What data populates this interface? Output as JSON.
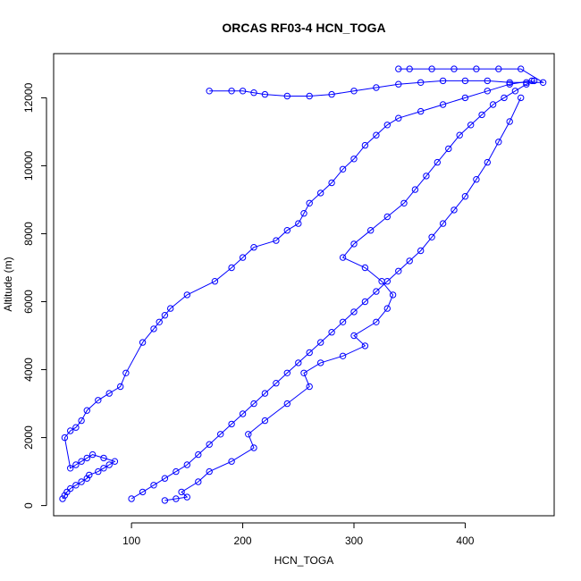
{
  "chart_data": {
    "type": "line",
    "title": "ORCAS RF03-4 HCN_TOGA",
    "xlabel": "HCN_TOGA",
    "ylabel": "Altitude (m)",
    "xlim": [
      30,
      480
    ],
    "ylim": [
      -300,
      13300
    ],
    "x_ticks": [
      100,
      200,
      300,
      400
    ],
    "y_ticks": [
      0,
      2000,
      4000,
      6000,
      8000,
      10000,
      12000
    ],
    "grid": false,
    "marker": "open-circle",
    "series_color": "#0000ff",
    "series": [
      {
        "x": [
          38,
          40,
          42,
          45,
          50,
          55,
          60,
          62,
          70,
          75,
          80,
          85,
          75,
          65,
          60,
          55,
          50,
          45,
          40,
          45,
          50,
          55,
          60,
          70,
          80,
          90,
          95,
          110,
          120,
          125,
          130,
          135,
          150,
          175,
          190,
          200,
          210,
          230,
          240,
          250,
          255,
          260,
          270,
          280,
          290,
          300,
          310,
          320,
          330,
          340,
          360,
          380,
          400,
          420,
          440,
          460
        ],
        "y": [
          200,
          300,
          400,
          500,
          600,
          700,
          800,
          900,
          1000,
          1100,
          1200,
          1300,
          1400,
          1500,
          1400,
          1300,
          1200,
          1100,
          2000,
          2200,
          2300,
          2500,
          2800,
          3100,
          3300,
          3500,
          3900,
          4800,
          5200,
          5400,
          5600,
          5800,
          6200,
          6600,
          7000,
          7300,
          7600,
          7800,
          8100,
          8300,
          8600,
          8900,
          9200,
          9500,
          9900,
          10200,
          10600,
          10900,
          11200,
          11400,
          11600,
          11800,
          12000,
          12200,
          12400,
          12500
        ]
      },
      {
        "x": [
          100,
          110,
          120,
          130,
          140,
          150,
          160,
          170,
          180,
          190,
          200,
          210,
          220,
          230,
          240,
          250,
          260,
          270,
          280,
          290,
          300,
          310,
          320,
          330,
          340,
          350,
          360,
          370,
          380,
          390,
          400,
          410,
          420,
          430,
          440,
          450
        ],
        "y": [
          200,
          400,
          600,
          800,
          1000,
          1200,
          1500,
          1800,
          2100,
          2400,
          2700,
          3000,
          3300,
          3600,
          3900,
          4200,
          4500,
          4800,
          5100,
          5400,
          5700,
          6000,
          6300,
          6600,
          6900,
          7200,
          7500,
          7900,
          8300,
          8700,
          9100,
          9600,
          10100,
          10700,
          11300,
          12000
        ]
      },
      {
        "x": [
          130,
          140,
          150,
          145,
          160,
          170,
          190,
          210,
          205,
          220,
          240,
          260,
          255,
          270,
          290,
          310,
          300,
          320,
          330,
          335,
          325,
          310,
          290,
          300,
          315,
          330,
          345,
          355,
          365,
          375,
          385,
          395,
          405,
          415,
          425,
          435,
          445,
          455,
          462
        ],
        "y": [
          150,
          200,
          250,
          400,
          700,
          1000,
          1300,
          1700,
          2100,
          2500,
          3000,
          3500,
          3900,
          4200,
          4400,
          4700,
          5000,
          5400,
          5800,
          6200,
          6600,
          7000,
          7300,
          7700,
          8100,
          8500,
          8900,
          9300,
          9700,
          10100,
          10500,
          10900,
          11200,
          11500,
          11800,
          12000,
          12200,
          12400,
          12500
        ]
      },
      {
        "x": [
          170,
          190,
          200,
          210,
          220,
          240,
          260,
          280,
          300,
          320,
          340,
          360,
          380,
          400,
          420,
          440,
          455,
          470,
          450,
          430,
          410,
          390,
          370,
          350,
          340
        ],
        "y": [
          12200,
          12200,
          12200,
          12150,
          12100,
          12050,
          12050,
          12100,
          12200,
          12300,
          12400,
          12450,
          12500,
          12500,
          12500,
          12450,
          12450,
          12450,
          12850,
          12850,
          12850,
          12850,
          12850,
          12850,
          12850
        ]
      }
    ]
  }
}
